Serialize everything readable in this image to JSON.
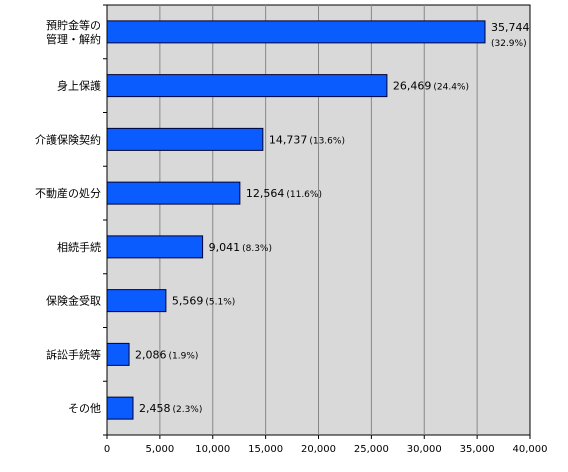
{
  "chart_data": {
    "type": "bar",
    "orientation": "horizontal",
    "categories": [
      [
        "預貯金等の",
        "管理・解約"
      ],
      [
        "身上保護"
      ],
      [
        "介護保険契約"
      ],
      [
        "不動産の処分"
      ],
      [
        "相続手続"
      ],
      [
        "保険金受取"
      ],
      [
        "訴訟手続等"
      ],
      [
        "その他"
      ]
    ],
    "values": [
      35744,
      26469,
      14737,
      12564,
      9041,
      5569,
      2086,
      2458
    ],
    "value_labels": [
      "35,744",
      "26,469",
      "14,737",
      "12,564",
      "9,041",
      "5,569",
      "2,086",
      "2,458"
    ],
    "percent_labels": [
      "(32.9%)",
      "(24.4%)",
      "(13.6%)",
      "(11.6%)",
      "(8.3%)",
      "(5.1%)",
      "(1.9%)",
      "(2.3%)"
    ],
    "xlim": [
      0,
      40000
    ],
    "xticks": [
      "0",
      "5,000",
      "10,000",
      "15,000",
      "20,000",
      "25,000",
      "30,000",
      "35,000",
      "40,000"
    ],
    "grid": true,
    "colors": {
      "bar": "#0b5cff",
      "bar_stroke": "#000033",
      "plot_bg": "#d9d9d9",
      "grid": "#888888"
    }
  }
}
